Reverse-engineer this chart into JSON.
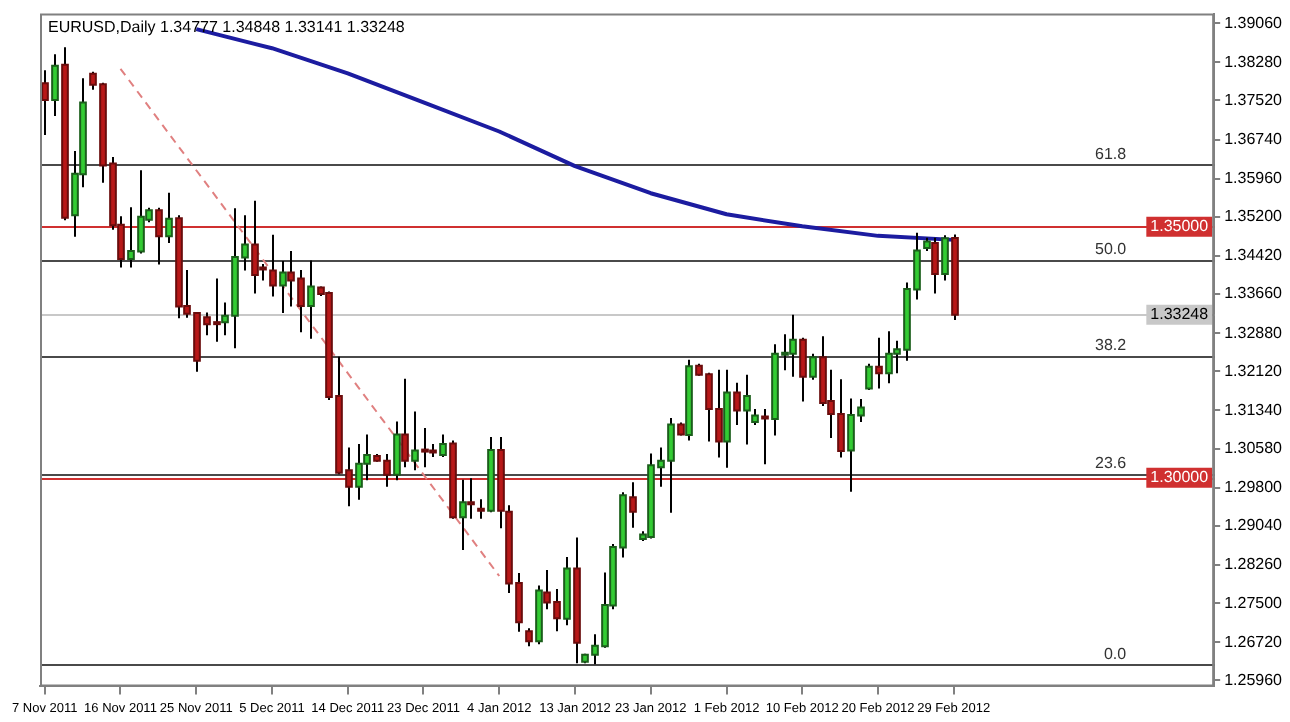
{
  "chart_data": {
    "type": "candlestick",
    "title": "EURUSD,Daily 1.34777 1.34848 1.33141 1.33248",
    "categories": [
      "7 Nov 2011",
      null,
      null,
      null,
      null,
      null,
      null,
      null,
      "16 Nov 2011",
      null,
      null,
      null,
      null,
      null,
      null,
      null,
      "25 Nov 2011",
      null,
      null,
      null,
      null,
      null,
      null,
      null,
      "5 Dec 2011",
      null,
      null,
      null,
      null,
      null,
      null,
      null,
      "14 Dec 2011",
      null,
      null,
      null,
      null,
      null,
      null,
      null,
      "23 Dec 2011",
      null,
      null,
      null,
      null,
      null,
      null,
      null,
      "4 Jan 2012",
      null,
      null,
      null,
      null,
      null,
      null,
      null,
      "13 Jan 2012",
      null,
      null,
      null,
      null,
      null,
      null,
      null,
      "23 Jan 2012",
      null,
      null,
      null,
      null,
      null,
      null,
      null,
      "1 Feb 2012",
      null,
      null,
      null,
      null,
      null,
      null,
      null,
      "10 Feb 2012",
      null,
      null,
      null,
      null,
      null,
      null,
      null,
      "20 Feb 2012",
      null,
      null,
      null,
      null,
      null,
      null,
      null,
      "29 Feb 2012",
      null,
      null,
      null,
      null,
      null,
      null,
      null,
      null,
      null,
      null,
      null,
      null,
      null,
      null,
      null,
      null,
      null,
      null,
      null,
      null,
      null,
      null,
      null,
      null,
      null,
      null,
      null
    ],
    "ohlc": [
      [
        1.3786,
        1.3812,
        1.3683,
        1.3753
      ],
      [
        1.3753,
        1.3844,
        1.3721,
        1.3821
      ],
      [
        1.3823,
        1.3858,
        1.3513,
        1.3518
      ],
      [
        1.3523,
        1.3651,
        1.348,
        1.3606
      ],
      [
        1.3605,
        1.3796,
        1.3579,
        1.3748
      ],
      [
        1.3805,
        1.3809,
        1.3773,
        1.3783
      ],
      [
        1.3784,
        1.3787,
        1.3588,
        1.3622
      ],
      [
        1.3626,
        1.3639,
        1.3494,
        1.3503
      ],
      [
        1.3504,
        1.3521,
        1.3419,
        1.3436
      ],
      [
        1.3436,
        1.3539,
        1.3419,
        1.3452
      ],
      [
        1.3451,
        1.3613,
        1.3447,
        1.352
      ],
      [
        1.3514,
        1.3538,
        1.3509,
        1.3533
      ],
      [
        1.3533,
        1.3538,
        1.3425,
        1.3481
      ],
      [
        1.3481,
        1.3568,
        1.3468,
        1.3516
      ],
      [
        1.3517,
        1.3523,
        1.3318,
        1.3341
      ],
      [
        1.3342,
        1.3414,
        1.3319,
        1.3327
      ],
      [
        1.3328,
        1.333,
        1.3211,
        1.3233
      ],
      [
        1.332,
        1.3329,
        1.3284,
        1.3306
      ],
      [
        1.331,
        1.3397,
        1.3271,
        1.3308
      ],
      [
        1.331,
        1.3349,
        1.3284,
        1.3323
      ],
      [
        1.3323,
        1.3537,
        1.3258,
        1.344
      ],
      [
        1.3439,
        1.3523,
        1.3413,
        1.3465
      ],
      [
        1.3465,
        1.3552,
        1.3367,
        1.3404
      ],
      [
        1.3419,
        1.3426,
        1.3393,
        1.3416
      ],
      [
        1.3413,
        1.3484,
        1.3361,
        1.3383
      ],
      [
        1.3383,
        1.3432,
        1.3328,
        1.3409
      ],
      [
        1.3409,
        1.3452,
        1.3341,
        1.3393
      ],
      [
        1.3397,
        1.3414,
        1.329,
        1.3342
      ],
      [
        1.3342,
        1.3433,
        1.3277,
        1.3381
      ],
      [
        1.3379,
        1.3381,
        1.3362,
        1.3366
      ],
      [
        1.3368,
        1.3371,
        1.3155,
        1.3161
      ],
      [
        1.3163,
        1.3241,
        1.3007,
        1.301
      ],
      [
        1.3015,
        1.306,
        1.2943,
        1.2982
      ],
      [
        1.2982,
        1.3067,
        1.2956,
        1.3028
      ],
      [
        1.3028,
        1.3086,
        1.2995,
        1.3045
      ],
      [
        1.3043,
        1.3047,
        1.3032,
        1.3034
      ],
      [
        1.3034,
        1.3047,
        1.2982,
        1.3006
      ],
      [
        1.3006,
        1.3112,
        1.2995,
        1.3086
      ],
      [
        1.3086,
        1.3197,
        1.3021,
        1.3034
      ],
      [
        1.3034,
        1.3132,
        1.3015,
        1.3054
      ],
      [
        1.3056,
        1.3099,
        1.3021,
        1.3053
      ],
      [
        1.3054,
        1.3067,
        1.3041,
        1.305
      ],
      [
        1.3045,
        1.3086,
        1.3041,
        1.3067
      ],
      [
        1.3068,
        1.3074,
        1.2918,
        1.2921
      ],
      [
        1.2921,
        1.2996,
        1.2856,
        1.2951
      ],
      [
        1.2951,
        1.2999,
        1.2918,
        1.2947
      ],
      [
        1.2938,
        1.2957,
        1.2918,
        1.2934
      ],
      [
        1.2934,
        1.3081,
        1.2931,
        1.3055
      ],
      [
        1.3055,
        1.3081,
        1.2899,
        1.2934
      ],
      [
        1.2932,
        1.2945,
        1.277,
        1.2789
      ],
      [
        1.279,
        1.281,
        1.2693,
        1.2712
      ],
      [
        1.2694,
        1.27,
        1.2664,
        1.2674
      ],
      [
        1.2674,
        1.2785,
        1.2668,
        1.2775
      ],
      [
        1.2771,
        1.2816,
        1.2738,
        1.2751
      ],
      [
        1.2752,
        1.2778,
        1.2694,
        1.272
      ],
      [
        1.2719,
        1.2842,
        1.2706,
        1.2819
      ],
      [
        1.2819,
        1.2881,
        1.263,
        1.2671
      ],
      [
        1.2633,
        1.2649,
        1.263,
        1.2647
      ],
      [
        1.2647,
        1.2688,
        1.2628,
        1.2665
      ],
      [
        1.2664,
        1.2811,
        1.2661,
        1.2746
      ],
      [
        1.2745,
        1.2868,
        1.2738,
        1.2862
      ],
      [
        1.2861,
        1.2971,
        1.2841,
        1.2965
      ],
      [
        1.2961,
        1.2991,
        1.29,
        1.2932
      ],
      [
        1.2878,
        1.2893,
        1.2874,
        1.2887
      ],
      [
        1.2882,
        1.3048,
        1.2879,
        1.3025
      ],
      [
        1.3021,
        1.306,
        1.2982,
        1.3034
      ],
      [
        1.3034,
        1.3119,
        1.293,
        1.3106
      ],
      [
        1.3106,
        1.311,
        1.3084,
        1.3086
      ],
      [
        1.3085,
        1.3235,
        1.3074,
        1.3222
      ],
      [
        1.3223,
        1.3227,
        1.3203,
        1.3205
      ],
      [
        1.3206,
        1.3209,
        1.3072,
        1.3137
      ],
      [
        1.3137,
        1.3215,
        1.304,
        1.3072
      ],
      [
        1.3072,
        1.3215,
        1.302,
        1.317
      ],
      [
        1.317,
        1.3189,
        1.3105,
        1.3134
      ],
      [
        1.3134,
        1.3205,
        1.3066,
        1.3163
      ],
      [
        1.3111,
        1.3137,
        1.3105,
        1.3124
      ],
      [
        1.3122,
        1.3137,
        1.3027,
        1.3118
      ],
      [
        1.3117,
        1.3266,
        1.3084,
        1.3247
      ],
      [
        1.3247,
        1.3286,
        1.3214,
        1.3249
      ],
      [
        1.3247,
        1.3325,
        1.3201,
        1.3275
      ],
      [
        1.3275,
        1.3279,
        1.3152,
        1.3201
      ],
      [
        1.3201,
        1.3247,
        1.3195,
        1.324
      ],
      [
        1.324,
        1.3282,
        1.3143,
        1.3149
      ],
      [
        1.3153,
        1.3215,
        1.3079,
        1.3127
      ],
      [
        1.3127,
        1.3196,
        1.304,
        1.3053
      ],
      [
        1.3054,
        1.3158,
        1.2972,
        1.3125
      ],
      [
        1.3124,
        1.3157,
        1.3111,
        1.314
      ],
      [
        1.3178,
        1.3227,
        1.3175,
        1.3221
      ],
      [
        1.3221,
        1.3279,
        1.3178,
        1.3208
      ],
      [
        1.3208,
        1.3292,
        1.3188,
        1.3247
      ],
      [
        1.3247,
        1.3273,
        1.3208,
        1.3256
      ],
      [
        1.3255,
        1.3389,
        1.3233,
        1.3376
      ],
      [
        1.3375,
        1.3488,
        1.3355,
        1.3453
      ],
      [
        1.3458,
        1.3478,
        1.3452,
        1.3471
      ],
      [
        1.3468,
        1.3478,
        1.3367,
        1.3406
      ],
      [
        1.3406,
        1.3483,
        1.3393,
        1.3477
      ],
      [
        1.34777,
        1.34848,
        1.33141,
        1.33248
      ],
      null,
      null,
      null,
      null,
      null,
      null,
      null,
      null,
      null,
      null,
      null,
      null,
      null,
      null,
      null,
      null,
      null,
      null,
      null,
      null,
      null,
      null,
      null,
      null,
      null,
      null,
      null
    ],
    "series": [
      {
        "type": "line",
        "color": "#1c1ca0",
        "x": [
          "25 Nov 2011",
          "5 Dec 2011",
          "14 Dec 2011",
          "23 Dec 2011",
          "4 Jan 2012",
          "13 Jan 2012",
          "23 Jan 2012",
          "1 Feb 2012",
          "10 Feb 2012",
          "20 Feb 2012",
          "29 Feb 2012"
        ],
        "values": [
          1.3894,
          1.3856,
          1.3806,
          1.3748,
          1.369,
          1.3621,
          1.3567,
          1.3525,
          1.3501,
          1.3482,
          1.3474
        ]
      },
      {
        "type": "line",
        "color": "#e08080",
        "line_style": "dashed",
        "x": [
          "16 Nov 2011",
          "4 Jan 2012"
        ],
        "values": [
          1.3815,
          1.2804
        ]
      }
    ],
    "ylim": [
      1.2584,
      1.3925
    ],
    "yticks": [
      {
        "value": 1.2596,
        "label": "1.25960"
      },
      {
        "value": 1.2672,
        "label": "1.26720"
      },
      {
        "value": 1.275,
        "label": "1.27500"
      },
      {
        "value": 1.2826,
        "label": "1.28260"
      },
      {
        "value": 1.2904,
        "label": "1.29040"
      },
      {
        "value": 1.298,
        "label": "1.29800"
      },
      {
        "value": 1.3058,
        "label": "1.30580"
      },
      {
        "value": 1.3134,
        "label": "1.31340"
      },
      {
        "value": 1.3212,
        "label": "1.32120"
      },
      {
        "value": 1.3288,
        "label": "1.32880"
      },
      {
        "value": 1.3366,
        "label": "1.33660"
      },
      {
        "value": 1.3442,
        "label": "1.34420"
      },
      {
        "value": 1.352,
        "label": "1.35200"
      },
      {
        "value": 1.3596,
        "label": "1.35960"
      },
      {
        "value": 1.3674,
        "label": "1.36740"
      },
      {
        "value": 1.3752,
        "label": "1.37520"
      },
      {
        "value": 1.3828,
        "label": "1.38280"
      },
      {
        "value": 1.3906,
        "label": "1.39060"
      }
    ],
    "ref_lines": [
      {
        "axis": "y",
        "value": 1.35,
        "label": "1.35000",
        "color": "#d03030"
      },
      {
        "axis": "y",
        "value": 1.3,
        "label": "1.30000",
        "color": "#d03030"
      },
      {
        "axis": "y",
        "value": 1.33248,
        "label": "1.33248",
        "color": "#c8c8c8"
      },
      {
        "axis": "y",
        "value": 1.3624
      },
      {
        "axis": "y",
        "value": 1.3434
      },
      {
        "axis": "y",
        "value": 1.3244
      },
      {
        "axis": "y",
        "value": 1.3008
      },
      {
        "axis": "y",
        "value": 1.2628
      }
    ],
    "annotations": [
      {
        "text": "61.8",
        "y": 1.3624
      },
      {
        "text": "50.0",
        "y": 1.3434
      },
      {
        "text": "38.2",
        "y": 1.3244
      },
      {
        "text": "23.6",
        "y": 1.3008
      },
      {
        "text": "0.0",
        "y": 1.2628
      }
    ],
    "grid": false,
    "legend": false
  }
}
